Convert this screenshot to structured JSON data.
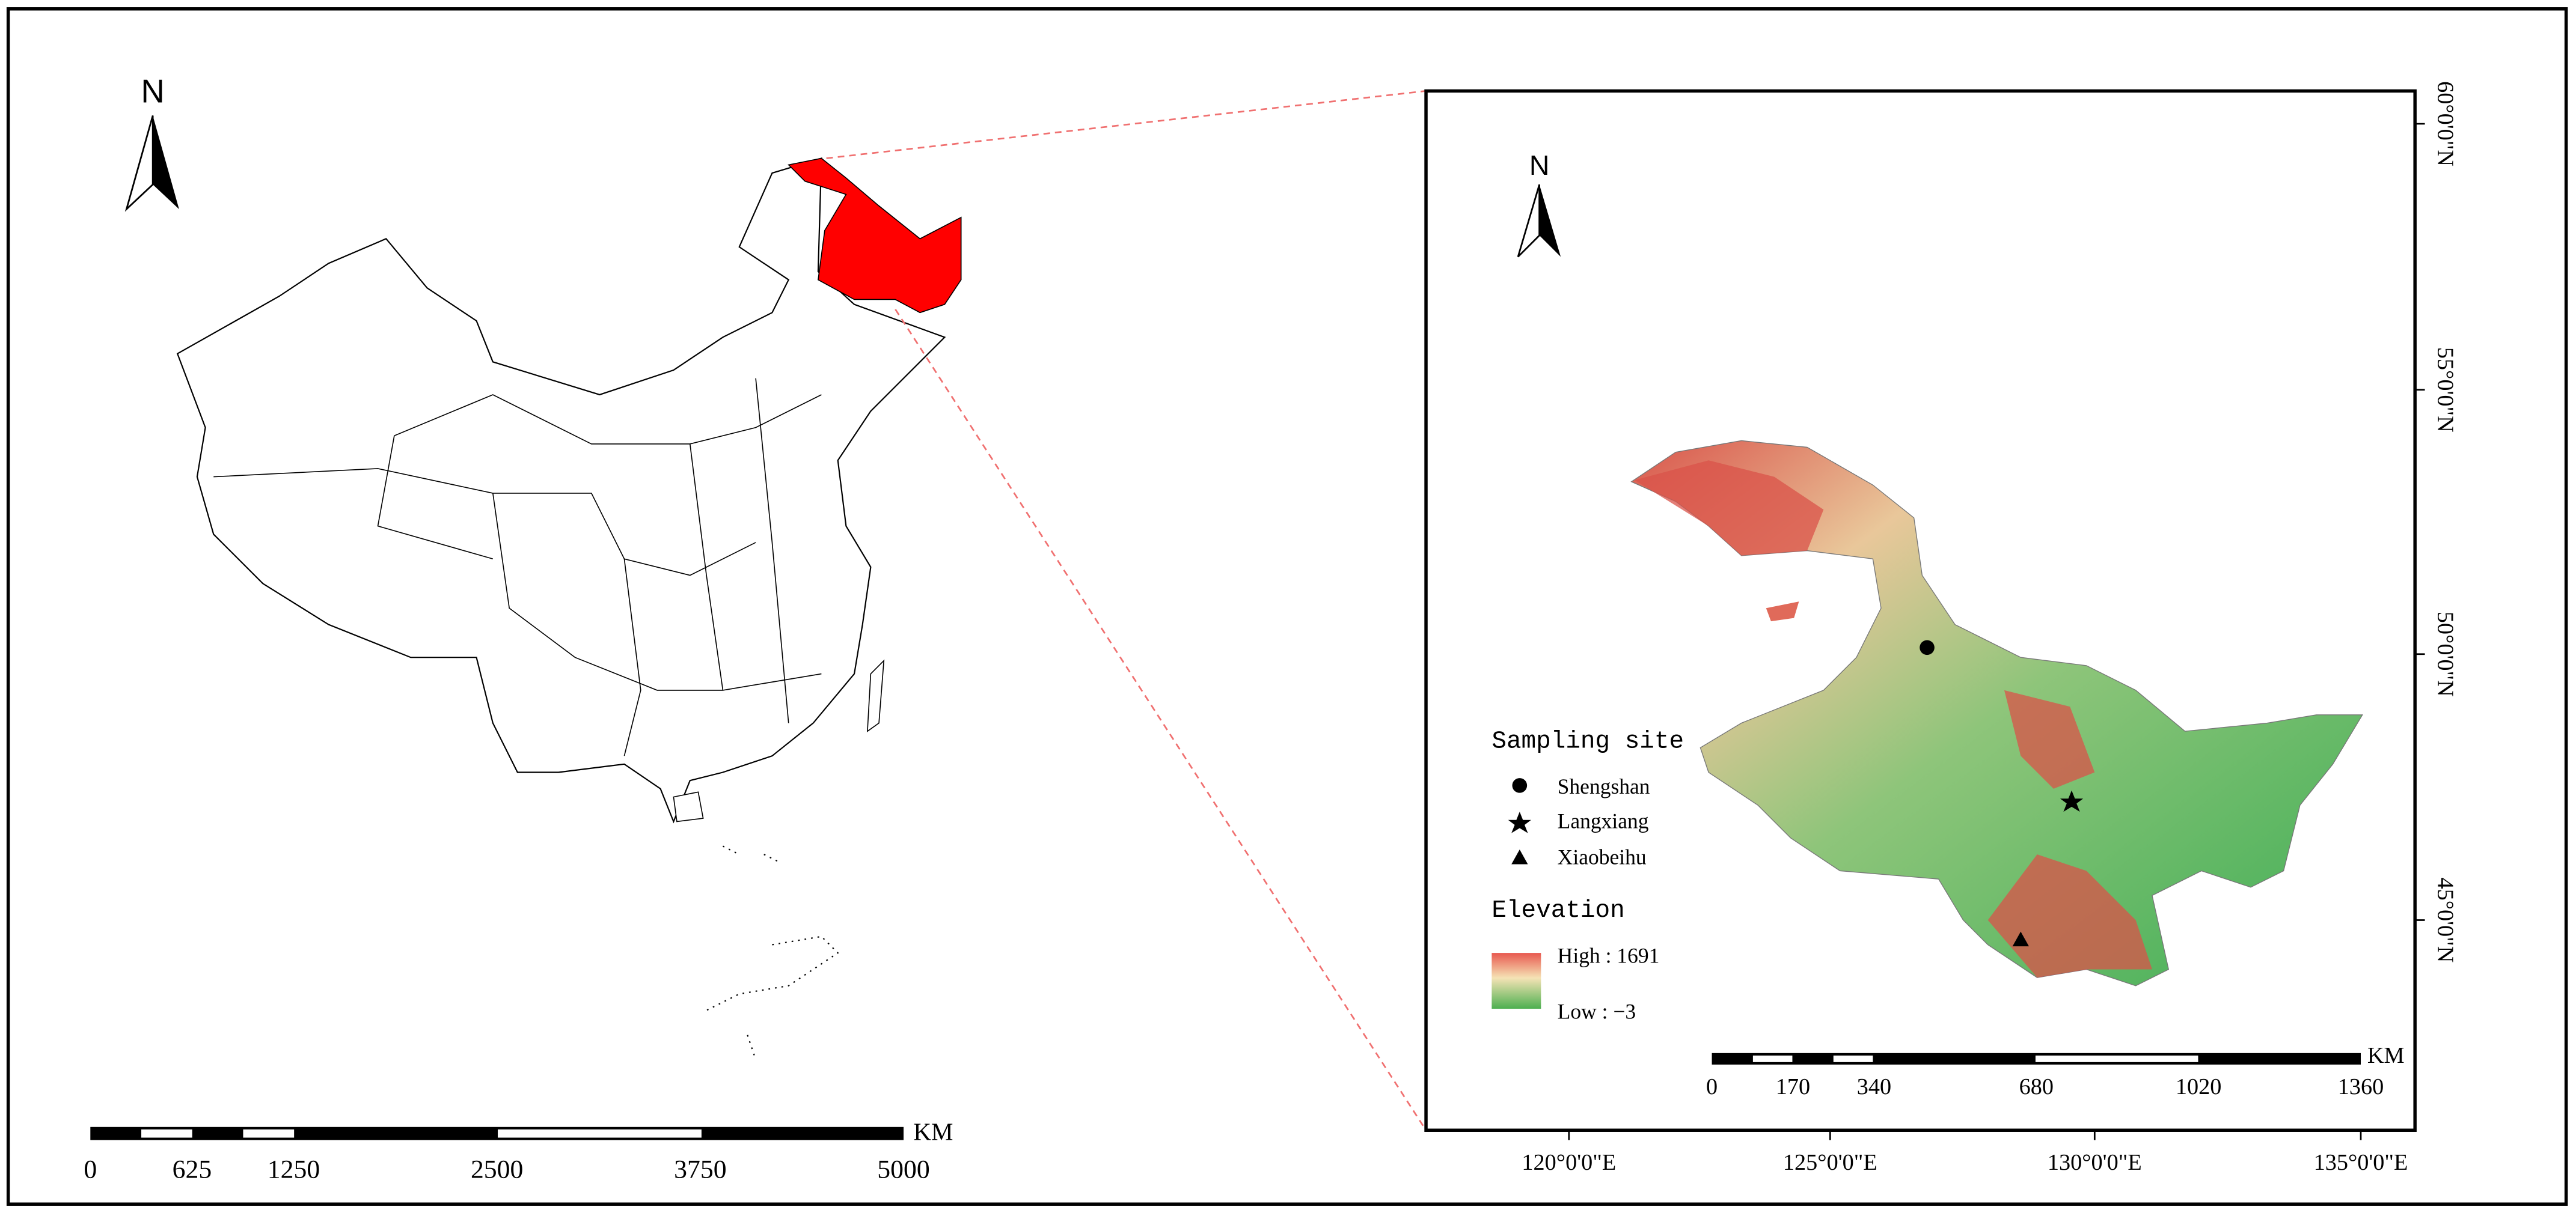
{
  "left_map": {
    "north": "N",
    "scale_labels": [
      "0",
      "625",
      "1250",
      "2500",
      "3750",
      "5000"
    ],
    "scale_unit": "KM"
  },
  "right_map": {
    "north": "N",
    "scale_labels": [
      "0",
      "170",
      "340",
      "680",
      "1020",
      "1360"
    ],
    "scale_unit": "KM",
    "lat_labels": [
      "60°0'0\"N",
      "55°0'0\"N",
      "50°0'0\"N",
      "45°0'0\"N"
    ],
    "lon_labels": [
      "120°0'0\"E",
      "125°0'0\"E",
      "130°0'0\"E",
      "135°0'0\"E"
    ],
    "legend": {
      "sampling_title": "Sampling site",
      "sites": [
        "Shengshan",
        "Langxiang",
        "Xiaobeihu"
      ],
      "elevation_title": "Elevation",
      "high": "High : 1691",
      "low": "Low : −3"
    }
  }
}
